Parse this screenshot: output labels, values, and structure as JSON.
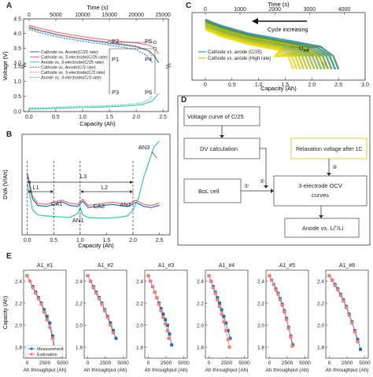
{
  "panels": {
    "A": {
      "label": "A",
      "top_axis_label": "Time (s)",
      "top_ticks": [
        "0",
        "5000",
        "10000",
        "15000",
        "20000",
        "25000"
      ],
      "xlabel": "Capacity (Ah)",
      "ylabel": "Voltage (V)",
      "x_ticks": [
        "0.0",
        "0.5",
        "1.0",
        "1.5",
        "2.0",
        "2.5"
      ],
      "y_ticks": [
        "0.0",
        "0.5",
        "1.0",
        "1.5",
        "3.0",
        "3.5",
        "4.0",
        "4.5"
      ],
      "legend": [
        "Cathode vs. Anode(C/25 rate)",
        "Cathode vs. 3-electrode(C/25 rate)",
        "Anode vs. 3-electrode(C/25 rate)",
        "Cathode vs. Anode(C/3 rate)",
        "Cathode vs. 3-electrode(C/3 rate)",
        "Anode vs. 3-electrode(C/3 rate)"
      ],
      "points": [
        "P1",
        "P2",
        "P3",
        "P4",
        "P5",
        "P6"
      ]
    },
    "B": {
      "label": "B",
      "xlabel": "Capacity (Ah)",
      "ylabel": "DVA (V/Ah)",
      "x_ticks": [
        "0.0",
        "0.5",
        "1.0",
        "1.5",
        "2.0",
        "2.5"
      ],
      "annotations": [
        "L1",
        "L2",
        "L3",
        "CA1",
        "CA2",
        "AN1",
        "AN2",
        "AN3"
      ]
    },
    "C": {
      "label": "C",
      "top_axis_label": "Time (s)",
      "top_ticks": [
        "0",
        "1000",
        "2000",
        "3000",
        "4000"
      ],
      "x_ticks": [
        "0",
        "0.5",
        "1.0",
        "1.5",
        "2.0",
        "2.5",
        "3.0"
      ],
      "xlabel": "Capacity (Ah)",
      "arrow_label": "Cycle increasing",
      "legend": [
        "Cathode vs. anode (C/25)",
        "Cathode vs. anode (High rate)"
      ],
      "annotation": "U",
      "annotation_sub": "diff"
    },
    "D": {
      "label": "D",
      "boxes": {
        "voltage_curve": "Voltage curve of C/25",
        "dv_calc": "DV calculation",
        "bol_cell": "BoL cell",
        "relaxation": "Relaxation voltage after 1C",
        "ocv_line1": "3-electrode OCV",
        "ocv_line2": "curves",
        "anode_vs": "Anode vs. Li",
        "anode_sup": "+",
        "anode_end": "/Li"
      },
      "markers": [
        "①",
        "②",
        "③"
      ]
    },
    "E": {
      "label": "E",
      "ylabel": "Capacity (Ah)",
      "xlabel": "Ah throughput (Ah)",
      "y_ticks": [
        "1.8",
        "2.0",
        "2.2",
        "2.4"
      ],
      "legend": [
        "Measurement",
        "Estimation"
      ]
    }
  },
  "chart_data": [
    {
      "type": "line",
      "title": "",
      "xlabel": "Capacity (Ah)",
      "ylabel": "Voltage (V)",
      "xlim": [
        -0.1,
        2.6
      ],
      "series": [
        {
          "name": "Cathode vs. Anode(C/25 rate)",
          "x": [
            0,
            0.2,
            0.5,
            0.8,
            1.2,
            1.6,
            2.0,
            2.25,
            2.35,
            2.42
          ],
          "y": [
            4.2,
            4.1,
            3.97,
            3.87,
            3.75,
            3.65,
            3.55,
            3.4,
            3.2,
            3.0
          ]
        },
        {
          "name": "Cathode vs. 3-electrode(C/25 rate)",
          "x": [
            0,
            0.2,
            0.5,
            0.8,
            1.2,
            1.6,
            2.0,
            2.25,
            2.35,
            2.42
          ],
          "y": [
            4.28,
            4.18,
            4.05,
            3.95,
            3.84,
            3.75,
            3.68,
            3.6,
            3.5,
            3.3
          ]
        },
        {
          "name": "Anode vs. 3-electrode(C/25 rate)",
          "x": [
            0,
            0.3,
            0.6,
            1.0,
            1.4,
            1.8,
            2.1,
            2.3,
            2.42
          ],
          "y": [
            0.08,
            0.09,
            0.11,
            0.13,
            0.15,
            0.18,
            0.22,
            0.35,
            0.6
          ]
        },
        {
          "name": "Cathode vs. Anode(C/3 rate)",
          "x": [
            0,
            0.2,
            0.5,
            0.8,
            1.2,
            1.6,
            2.0,
            2.2,
            2.3
          ],
          "y": [
            4.15,
            4.03,
            3.9,
            3.8,
            3.68,
            3.58,
            3.45,
            3.25,
            3.0
          ]
        },
        {
          "name": "Cathode vs. 3-electrode(C/3 rate)",
          "x": [
            0,
            0.2,
            0.5,
            0.8,
            1.2,
            1.6,
            2.0,
            2.2,
            2.3
          ],
          "y": [
            4.24,
            4.12,
            3.98,
            3.88,
            3.77,
            3.68,
            3.58,
            3.45,
            3.2
          ]
        },
        {
          "name": "Anode vs. 3-electrode(C/3 rate)",
          "x": [
            0,
            0.3,
            0.6,
            1.0,
            1.4,
            1.8,
            2.1,
            2.25,
            2.3
          ],
          "y": [
            0.12,
            0.13,
            0.15,
            0.17,
            0.19,
            0.22,
            0.28,
            0.4,
            0.55
          ]
        }
      ]
    },
    {
      "type": "line",
      "title": "",
      "xlabel": "Capacity (Ah)",
      "ylabel": "DVA (V/Ah)",
      "xlim": [
        -0.1,
        2.7
      ],
      "series": [
        {
          "name": "",
          "x": [
            0,
            0.1,
            0.2,
            0.35,
            0.5,
            0.65,
            0.8,
            0.95,
            1.05,
            1.15,
            1.3,
            1.45,
            1.6,
            1.75,
            1.9,
            2.05,
            2.2,
            2.35,
            2.5
          ],
          "y": [
            1.0,
            0.55,
            0.42,
            0.4,
            0.44,
            0.48,
            0.42,
            0.4,
            0.5,
            0.38,
            0.4,
            0.42,
            0.44,
            0.42,
            0.4,
            0.48,
            0.4,
            0.38,
            0.42
          ]
        },
        {
          "name": "",
          "x": [
            0,
            0.1,
            0.2,
            0.35,
            0.5,
            0.65,
            0.8,
            0.95,
            1.05,
            1.15,
            1.3,
            1.45,
            1.6,
            1.75,
            1.9,
            2.05,
            2.2,
            2.35,
            2.5
          ],
          "y": [
            0.95,
            0.5,
            0.38,
            0.36,
            0.4,
            0.45,
            0.38,
            0.36,
            0.46,
            0.34,
            0.36,
            0.38,
            0.4,
            0.38,
            0.36,
            0.44,
            0.36,
            0.34,
            0.38
          ]
        },
        {
          "name": "",
          "x": [
            0,
            0.1,
            0.2,
            0.35,
            0.5,
            0.65,
            0.8,
            0.95,
            1.0,
            1.05,
            1.15,
            1.3,
            1.5,
            1.7,
            1.9,
            2.0,
            2.1,
            2.2,
            2.3,
            2.4,
            2.5
          ],
          "y": [
            0.8,
            0.3,
            0.2,
            0.18,
            0.17,
            0.16,
            0.15,
            0.22,
            0.34,
            0.2,
            0.15,
            0.14,
            0.14,
            0.15,
            0.18,
            0.3,
            0.5,
            0.9,
            1.2,
            1.5,
            1.6
          ]
        }
      ]
    },
    {
      "type": "line",
      "title": "",
      "xlabel": "Capacity (Ah)",
      "ylabel": "",
      "xlim": [
        -0.25,
        3.0
      ],
      "series": [
        {
          "name": "Cathode vs. anode (C/25)",
          "x": [
            0,
            0.3,
            0.8,
            1.4,
            2.0,
            2.3,
            2.45
          ],
          "y": [
            4.2,
            4.05,
            3.85,
            3.7,
            3.55,
            3.3,
            2.9
          ]
        },
        {
          "name": "Cathode vs. anode (High rate)",
          "x": [
            0,
            0.3,
            0.8,
            1.4,
            1.9,
            2.15,
            2.3
          ],
          "y": [
            4.1,
            3.95,
            3.75,
            3.6,
            3.45,
            3.2,
            2.9
          ]
        }
      ]
    },
    {
      "type": "scatter",
      "title": "",
      "xlabel": "Ah throughput (Ah)",
      "ylabel": "Capacity (Ah)",
      "ylim": [
        1.7,
        2.5
      ],
      "subplots": [
        {
          "name": "A1_#1",
          "x_ticks": [
            "0",
            "2500",
            "5000"
          ],
          "xlim": [
            -500,
            5500
          ],
          "measurement_x": [
            0,
            400,
            800,
            1200,
            1600,
            2000,
            2400,
            2800,
            3200,
            3600,
            4000
          ],
          "measurement_y": [
            2.45,
            2.4,
            2.35,
            2.3,
            2.25,
            2.2,
            2.14,
            2.08,
            2.02,
            1.9,
            1.75
          ],
          "estimation_x": [
            0,
            400,
            800,
            1200,
            1600,
            2000,
            2400,
            2800,
            3200,
            3600,
            3800
          ],
          "estimation_y": [
            2.45,
            2.4,
            2.34,
            2.29,
            2.24,
            2.19,
            2.12,
            2.05,
            1.98,
            1.88,
            1.76
          ]
        },
        {
          "name": "A1_#2",
          "x_ticks": [
            "0",
            "2500",
            "5000"
          ],
          "xlim": [
            -500,
            5500
          ],
          "measurement_x": [
            0,
            400,
            800,
            1200,
            1600,
            2000,
            2400,
            2800,
            3200,
            3600,
            4000
          ],
          "measurement_y": [
            2.45,
            2.4,
            2.35,
            2.3,
            2.25,
            2.2,
            2.14,
            2.08,
            2.02,
            1.95,
            1.88
          ],
          "estimation_x": [
            0,
            400,
            800,
            1200,
            1600,
            2000,
            2400,
            2800,
            3200,
            3600
          ],
          "estimation_y": [
            2.45,
            2.4,
            2.34,
            2.29,
            2.24,
            2.19,
            2.13,
            2.07,
            2.0,
            1.93
          ]
        },
        {
          "name": "A1_#3",
          "x_ticks": [
            "0",
            "2500",
            "5000"
          ],
          "xlim": [
            -500,
            5500
          ],
          "measurement_x": [
            0,
            300,
            600,
            900,
            1200,
            1500,
            1800,
            2100,
            2400,
            2700,
            3000,
            3300
          ],
          "measurement_y": [
            2.45,
            2.4,
            2.35,
            2.3,
            2.25,
            2.2,
            2.15,
            2.1,
            2.05,
            2.0,
            1.92,
            1.82
          ],
          "estimation_x": [
            0,
            300,
            600,
            900,
            1200,
            1500,
            1800,
            2100,
            2400,
            2700,
            2900
          ],
          "estimation_y": [
            2.45,
            2.4,
            2.35,
            2.3,
            2.25,
            2.19,
            2.13,
            2.07,
            2.01,
            1.95,
            1.88
          ]
        },
        {
          "name": "A1_#4",
          "x_ticks": [
            "0",
            "2500",
            "5000"
          ],
          "xlim": [
            -500,
            5500
          ],
          "measurement_x": [
            0,
            300,
            600,
            900,
            1200,
            1500,
            1800,
            2100,
            2400,
            2700,
            3000
          ],
          "measurement_y": [
            2.45,
            2.4,
            2.35,
            2.3,
            2.25,
            2.2,
            2.14,
            2.08,
            2.02,
            1.95,
            1.88
          ],
          "estimation_x": [
            0,
            300,
            600,
            900,
            1200,
            1500,
            1800,
            2100,
            2400,
            2700,
            2900
          ],
          "estimation_y": [
            2.45,
            2.4,
            2.34,
            2.29,
            2.23,
            2.17,
            2.1,
            2.03,
            1.95,
            1.87,
            1.8
          ]
        },
        {
          "name": "A1_#5",
          "x_ticks": [
            "0",
            "2500",
            "5000"
          ],
          "xlim": [
            -500,
            5500
          ],
          "measurement_x": [
            0,
            300,
            600,
            900,
            1200,
            1500,
            1800,
            2100,
            2400,
            2700,
            3000,
            3300
          ],
          "measurement_y": [
            2.45,
            2.41,
            2.37,
            2.33,
            2.29,
            2.24,
            2.19,
            2.13,
            2.06,
            1.98,
            1.9,
            1.82
          ],
          "estimation_x": [
            0,
            300,
            600,
            900,
            1200,
            1500,
            1800,
            2100,
            2400,
            2700,
            3000,
            3200
          ],
          "estimation_y": [
            2.45,
            2.41,
            2.37,
            2.32,
            2.28,
            2.23,
            2.18,
            2.12,
            2.05,
            1.97,
            1.89,
            1.81
          ]
        },
        {
          "name": "A1_#6",
          "x_ticks": [
            "0",
            "2500",
            "5000"
          ],
          "xlim": [
            -500,
            5500
          ],
          "measurement_x": [
            0,
            400,
            800,
            1200,
            1600,
            2000,
            2400,
            2800,
            3200,
            3600,
            4000,
            4400
          ],
          "measurement_y": [
            2.45,
            2.41,
            2.37,
            2.33,
            2.28,
            2.23,
            2.17,
            2.1,
            2.03,
            1.95,
            1.87,
            1.78
          ],
          "estimation_x": [
            0,
            400,
            800,
            1200,
            1600,
            2000,
            2400,
            2800,
            3200,
            3600,
            4000
          ],
          "estimation_y": [
            2.45,
            2.41,
            2.36,
            2.32,
            2.27,
            2.22,
            2.16,
            2.09,
            2.02,
            1.94,
            1.85
          ]
        }
      ]
    }
  ]
}
